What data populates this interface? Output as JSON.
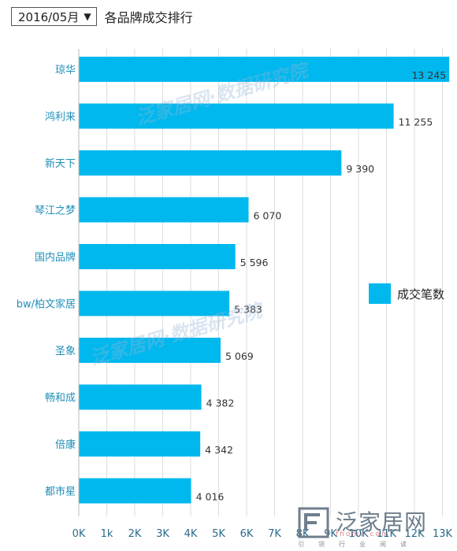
{
  "header": {
    "period_value": "2016/05月",
    "dropdown_arrow": "▼",
    "title": "各品牌成交排行"
  },
  "colors": {
    "bar": "#00B8EE",
    "label": "#1f8fb8",
    "grid": "#dddddd",
    "tick": "#2a6a8a"
  },
  "chart_data": {
    "type": "bar",
    "orientation": "horizontal",
    "categories": [
      "琼华",
      "鸿利来",
      "新天下",
      "琴江之梦",
      "国内品牌",
      "bw/柏文家居",
      "圣象",
      "畅和成",
      "倍康",
      "都市星"
    ],
    "series": [
      {
        "name": "成交笔数",
        "values": [
          13245,
          11255,
          9390,
          6070,
          5596,
          5383,
          5069,
          4382,
          4342,
          4016
        ]
      }
    ],
    "value_labels": [
      "13 245",
      "11 255",
      "9 390",
      "6 070",
      "5 596",
      "5 383",
      "5 069",
      "4 382",
      "4 342",
      "4 016"
    ],
    "xlim": [
      0,
      13000
    ],
    "xticks": [
      0,
      1000,
      2000,
      3000,
      4000,
      5000,
      6000,
      7000,
      8000,
      9000,
      10000,
      11000,
      12000,
      13000
    ],
    "xtick_labels": [
      "0K",
      "1k",
      "2K",
      "3K",
      "4K",
      "5K",
      "6K",
      "7K",
      "8K",
      "9K",
      "10K",
      "11K",
      "12K",
      "13K"
    ],
    "grid": true,
    "legend_position": "right"
  },
  "watermark": {
    "text": "泛家居网·数据研究院"
  },
  "logo": {
    "name": "泛家居网",
    "url": "fhome.com",
    "slogan": "引领行业阅读"
  }
}
